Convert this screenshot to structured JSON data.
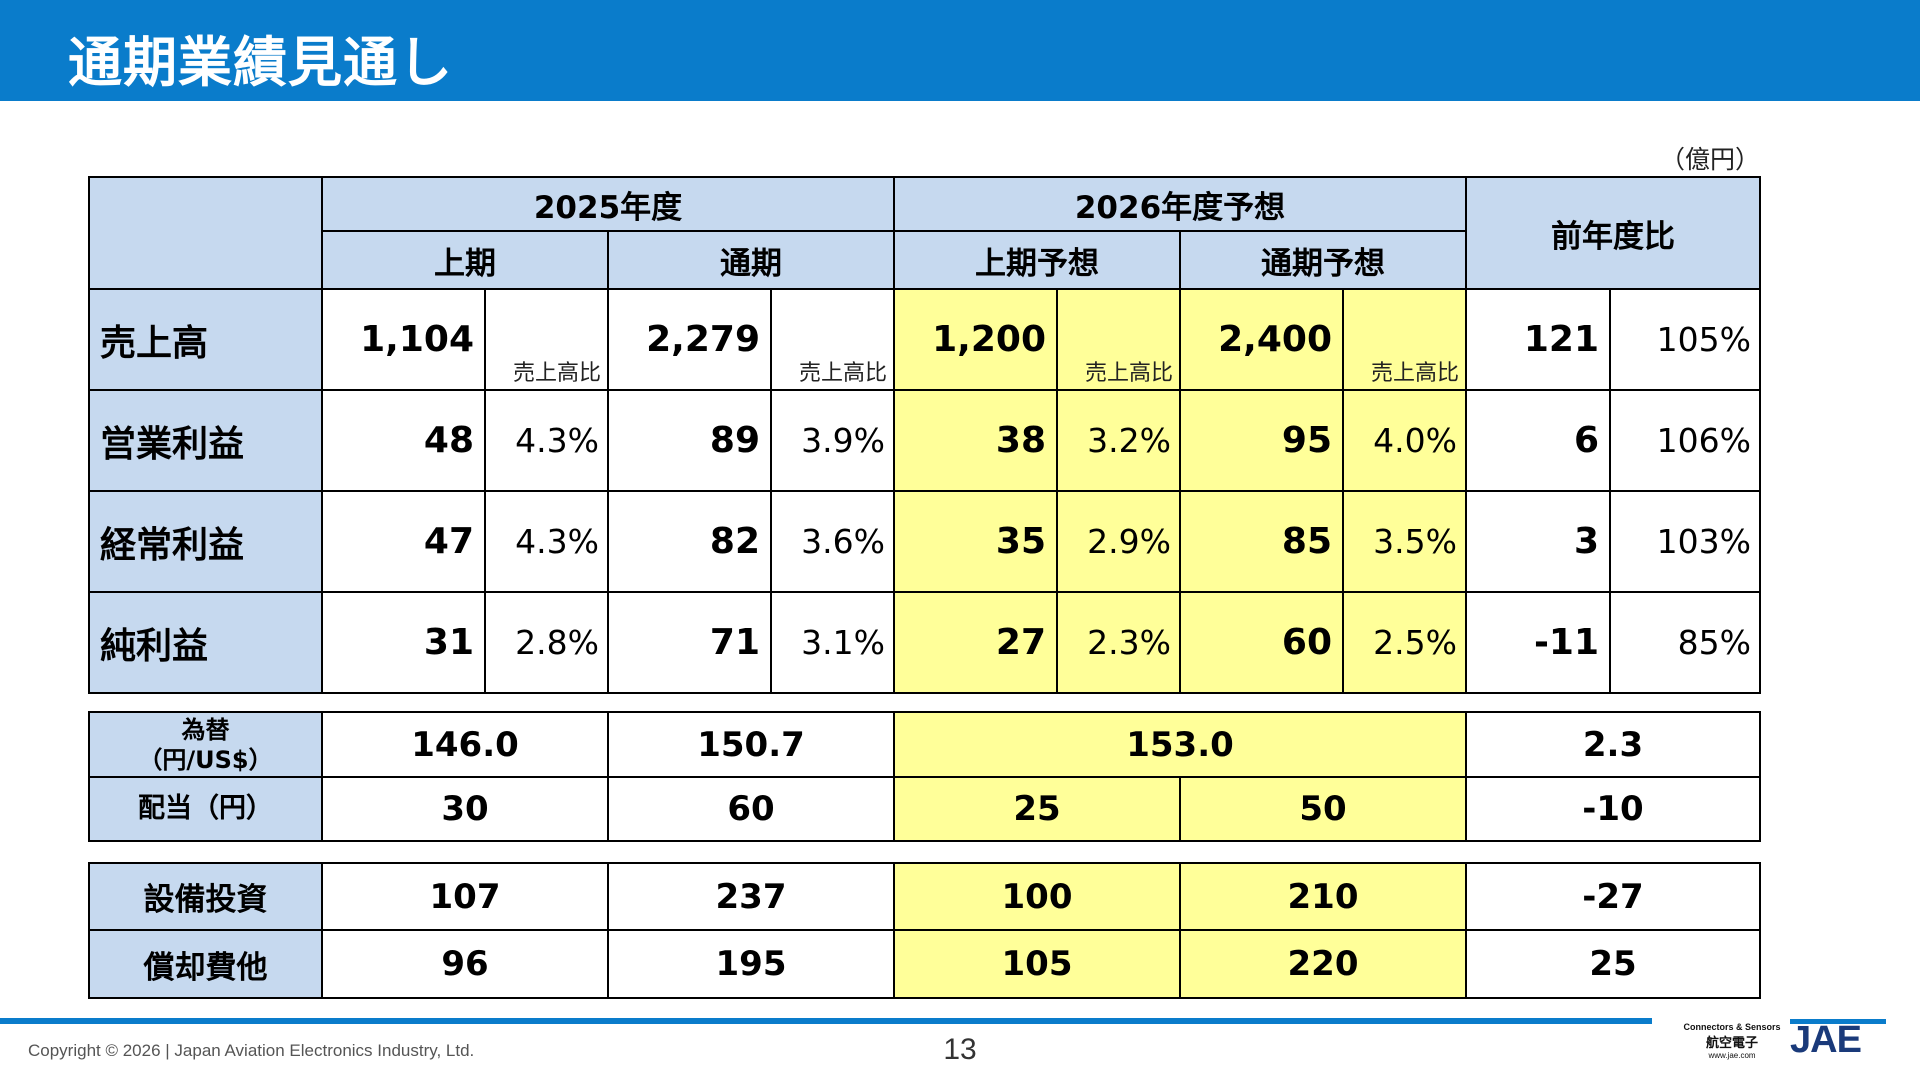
{
  "title": "通期業績見通し",
  "unit": "（億円）",
  "header": {
    "fy2025": "2025年度",
    "fy2026": "2026年度予想",
    "yoy": "前年度比",
    "h1": "上期",
    "full": "通期",
    "h1_forecast": "上期予想",
    "full_forecast": "通期予想",
    "ratio_label": "売上高比"
  },
  "rows": [
    {
      "label": "売上高",
      "h1_2025": "1,104",
      "full_2025": "2,279",
      "h1_2026": "1,200",
      "full_2026": "2,400",
      "yoy_diff": "121",
      "yoy_pct": "105%"
    },
    {
      "label": "営業利益",
      "h1_2025": "48",
      "h1_2025_pct": "4.3%",
      "full_2025": "89",
      "full_2025_pct": "3.9%",
      "h1_2026": "38",
      "h1_2026_pct": "3.2%",
      "full_2026": "95",
      "full_2026_pct": "4.0%",
      "yoy_diff": "6",
      "yoy_pct": "106%"
    },
    {
      "label": "経常利益",
      "h1_2025": "47",
      "h1_2025_pct": "4.3%",
      "full_2025": "82",
      "full_2025_pct": "3.6%",
      "h1_2026": "35",
      "h1_2026_pct": "2.9%",
      "full_2026": "85",
      "full_2026_pct": "3.5%",
      "yoy_diff": "3",
      "yoy_pct": "103%"
    },
    {
      "label": "純利益",
      "h1_2025": "31",
      "h1_2025_pct": "2.8%",
      "full_2025": "71",
      "full_2025_pct": "3.1%",
      "h1_2026": "27",
      "h1_2026_pct": "2.3%",
      "full_2026": "60",
      "full_2026_pct": "2.5%",
      "yoy_diff": "-11",
      "yoy_pct": "85%"
    }
  ],
  "fx": {
    "label_line1": "為替",
    "label_line2": "（円/US$）",
    "h1_2025": "146.0",
    "full_2025": "150.7",
    "fy2026": "153.0",
    "yoy": "2.3"
  },
  "dividend": {
    "label": "配当（円）",
    "h1_2025": "30",
    "full_2025": "60",
    "h1_2026": "25",
    "full_2026": "50",
    "yoy": "-10"
  },
  "capex": {
    "label": "設備投資",
    "h1_2025": "107",
    "full_2025": "237",
    "h1_2026": "100",
    "full_2026": "210",
    "yoy": "-27"
  },
  "depreciation": {
    "label": "償却費他",
    "h1_2025": "96",
    "full_2025": "195",
    "h1_2026": "105",
    "full_2026": "220",
    "yoy": "25"
  },
  "footer": {
    "copyright": "Copyright © 2026 | Japan Aviation Electronics Industry, Ltd.",
    "page": "13",
    "brand_tagline": "Connectors & Sensors",
    "brand_jp": "航空電子",
    "brand_url": "www.jae.com",
    "logo": "JAE"
  },
  "colors": {
    "header_blue": "#0a7ccb",
    "label_blue": "#c6d9ef",
    "forecast_yellow": "#ffff99"
  }
}
